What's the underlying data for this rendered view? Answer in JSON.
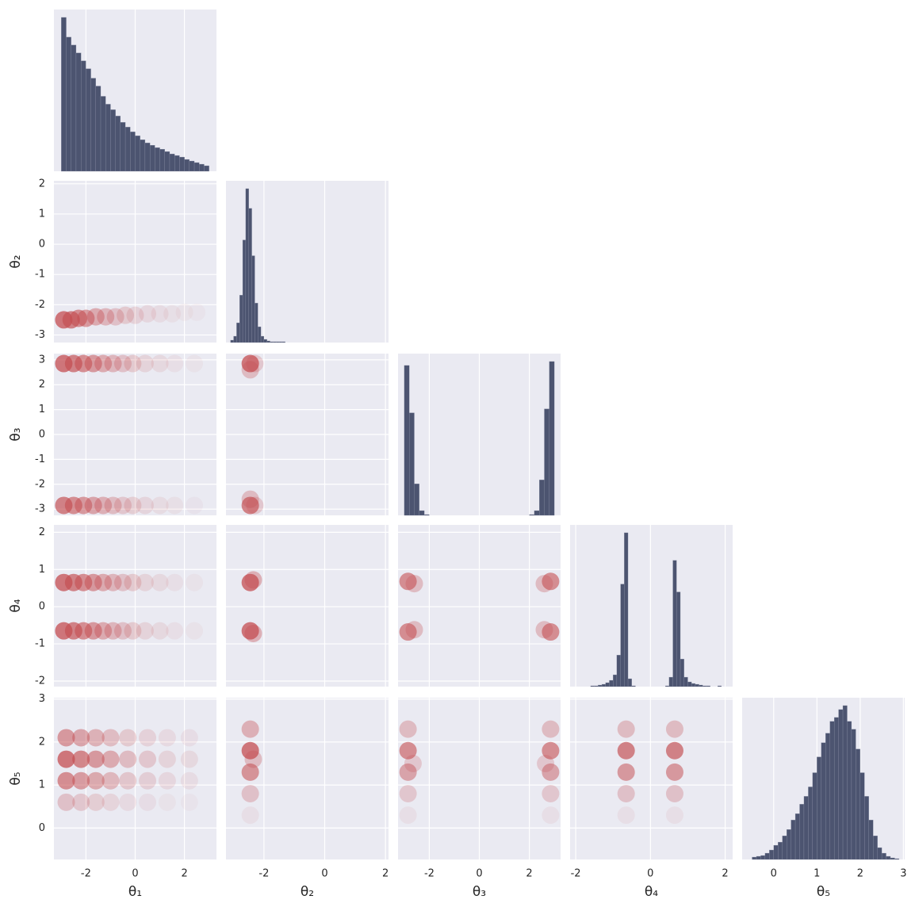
{
  "chart_data": {
    "type": "corner",
    "hist_color": "#4c5470",
    "hex_color": "#c44e52",
    "panel_color": "#eaeaf2",
    "grid": true,
    "variables": [
      {
        "label": "θ₁",
        "lim": [
          -3.3,
          3.3
        ],
        "xticks": [
          -2,
          0,
          2
        ],
        "bins": [
          -3.0,
          -2.8,
          -2.6,
          -2.4,
          -2.2,
          -2.0,
          -1.8,
          -1.6,
          -1.4,
          -1.2,
          -1.0,
          -0.8,
          -0.6,
          -0.4,
          -0.2,
          0.0,
          0.2,
          0.4,
          0.6,
          0.8,
          1.0,
          1.2,
          1.4,
          1.6,
          1.8,
          2.0,
          2.2,
          2.4,
          2.6,
          2.8,
          3.0
        ],
        "counts": [
          195,
          170,
          160,
          150,
          140,
          130,
          118,
          108,
          95,
          85,
          78,
          70,
          62,
          56,
          50,
          45,
          40,
          36,
          33,
          30,
          28,
          25,
          22,
          20,
          18,
          15,
          13,
          11,
          9,
          7
        ],
        "hist_ylim": [
          0,
          205
        ]
      },
      {
        "label": "θ₂",
        "lim": [
          -3.25,
          2.1
        ],
        "xticks": [
          -2,
          0,
          2
        ],
        "yticks": [
          -3,
          -2,
          -1,
          0,
          1,
          2
        ],
        "bins": [
          -3.1,
          -3.0,
          -2.9,
          -2.8,
          -2.7,
          -2.6,
          -2.5,
          -2.4,
          -2.3,
          -2.2,
          -2.1,
          -2.0,
          -1.9,
          -1.8,
          -1.7,
          -1.6,
          -1.5,
          -1.4,
          -1.3
        ],
        "counts": [
          3,
          8,
          25,
          60,
          130,
          195,
          170,
          110,
          50,
          20,
          8,
          4,
          2,
          1,
          1,
          1,
          1,
          1
        ],
        "hist_ylim": [
          0,
          205
        ]
      },
      {
        "label": "θ₃",
        "lim": [
          -3.25,
          3.25
        ],
        "xticks": [
          -2,
          0,
          2
        ],
        "yticks": [
          -3,
          -2,
          -1,
          0,
          1,
          2,
          3
        ],
        "bins": [
          -3.0,
          -2.8,
          -2.6,
          -2.4,
          -2.2,
          -2.0,
          -1.8,
          -1.6,
          -1.4,
          -1.2,
          -1.0,
          -0.8,
          -0.6,
          -0.4,
          -0.2,
          0.0,
          0.2,
          0.4,
          0.6,
          0.8,
          1.0,
          1.2,
          1.4,
          1.6,
          1.8,
          2.0,
          2.2,
          2.4,
          2.6,
          2.8,
          3.0
        ],
        "counts": [
          190,
          130,
          40,
          6,
          1,
          0,
          0,
          0,
          0,
          0,
          0,
          0,
          0,
          0,
          0,
          0,
          0,
          0,
          0,
          0,
          0,
          0,
          0,
          0,
          0,
          1,
          6,
          45,
          135,
          195
        ],
        "hist_ylim": [
          0,
          205
        ]
      },
      {
        "label": "θ₄",
        "lim": [
          -2.15,
          2.2
        ],
        "xticks": [
          -2,
          0,
          2
        ],
        "yticks": [
          -2,
          -1,
          0,
          1,
          2
        ],
        "bins": [
          -2.0,
          -1.9,
          -1.8,
          -1.7,
          -1.6,
          -1.5,
          -1.4,
          -1.3,
          -1.2,
          -1.1,
          -1.0,
          -0.9,
          -0.8,
          -0.7,
          -0.6,
          -0.5,
          -0.4,
          -0.3,
          -0.2,
          -0.1,
          0.0,
          0.1,
          0.2,
          0.3,
          0.4,
          0.5,
          0.6,
          0.7,
          0.8,
          0.9,
          1.0,
          1.1,
          1.2,
          1.3,
          1.4,
          1.5,
          1.6,
          1.7,
          1.8,
          1.9,
          2.0
        ],
        "counts": [
          0,
          0,
          0,
          0,
          1,
          1,
          2,
          3,
          5,
          8,
          15,
          40,
          130,
          195,
          10,
          1,
          0,
          0,
          0,
          0,
          0,
          0,
          0,
          0,
          1,
          12,
          160,
          120,
          35,
          12,
          6,
          4,
          3,
          2,
          1,
          1,
          0,
          0,
          1,
          0
        ],
        "hist_ylim": [
          0,
          205
        ]
      },
      {
        "label": "θ₅",
        "lim": [
          -0.73,
          3.03
        ],
        "xticks": [
          0,
          1,
          2,
          3
        ],
        "yticks": [
          0,
          1,
          2,
          3
        ],
        "bins": [
          -0.5,
          -0.4,
          -0.3,
          -0.2,
          -0.1,
          0.0,
          0.1,
          0.2,
          0.3,
          0.4,
          0.5,
          0.6,
          0.7,
          0.8,
          0.9,
          1.0,
          1.1,
          1.2,
          1.3,
          1.4,
          1.5,
          1.6,
          1.7,
          1.8,
          1.9,
          2.0,
          2.1,
          2.2,
          2.3,
          2.4,
          2.5,
          2.6,
          2.7,
          2.8,
          2.9
        ],
        "counts": [
          3,
          4,
          5,
          8,
          12,
          18,
          22,
          30,
          38,
          50,
          58,
          70,
          80,
          92,
          110,
          130,
          148,
          160,
          175,
          180,
          190,
          195,
          175,
          165,
          140,
          110,
          80,
          50,
          30,
          15,
          8,
          4,
          2,
          1
        ],
        "hist_ylim": [
          0,
          205
        ]
      }
    ],
    "pairs": [
      {
        "row": 1,
        "col": 0,
        "cells": [
          [
            -2.9,
            -2.5,
            1
          ],
          [
            -2.6,
            -2.5,
            0.9
          ],
          [
            -2.3,
            -2.45,
            0.8
          ],
          [
            -2.0,
            -2.45,
            0.7
          ],
          [
            -1.6,
            -2.4,
            0.55
          ],
          [
            -1.2,
            -2.4,
            0.45
          ],
          [
            -0.8,
            -2.4,
            0.35
          ],
          [
            -0.4,
            -2.35,
            0.28
          ],
          [
            0,
            -2.35,
            0.22
          ],
          [
            0.5,
            -2.3,
            0.16
          ],
          [
            1,
            -2.3,
            0.12
          ],
          [
            1.5,
            -2.3,
            0.09
          ],
          [
            2,
            -2.25,
            0.07
          ],
          [
            2.5,
            -2.25,
            0.05
          ]
        ]
      },
      {
        "row": 2,
        "col": 0,
        "cells": [
          [
            -2.9,
            2.85,
            1
          ],
          [
            -2.5,
            2.85,
            0.9
          ],
          [
            -2.1,
            2.85,
            0.8
          ],
          [
            -1.7,
            2.85,
            0.7
          ],
          [
            -1.3,
            2.85,
            0.55
          ],
          [
            -0.9,
            2.85,
            0.45
          ],
          [
            -0.5,
            2.85,
            0.35
          ],
          [
            -0.1,
            2.85,
            0.28
          ],
          [
            0.4,
            2.85,
            0.2
          ],
          [
            1.0,
            2.85,
            0.15
          ],
          [
            1.6,
            2.85,
            0.1
          ],
          [
            2.4,
            2.85,
            0.07
          ],
          [
            -2.9,
            -2.85,
            0.9
          ],
          [
            -2.5,
            -2.85,
            0.8
          ],
          [
            -2.1,
            -2.85,
            0.7
          ],
          [
            -1.7,
            -2.85,
            0.6
          ],
          [
            -1.3,
            -2.85,
            0.5
          ],
          [
            -0.9,
            -2.85,
            0.4
          ],
          [
            -0.5,
            -2.85,
            0.3
          ],
          [
            -0.1,
            -2.85,
            0.25
          ],
          [
            0.4,
            -2.85,
            0.18
          ],
          [
            1.0,
            -2.85,
            0.13
          ],
          [
            1.6,
            -2.85,
            0.09
          ],
          [
            2.4,
            -2.85,
            0.06
          ]
        ]
      },
      {
        "row": 2,
        "col": 1,
        "cells": [
          [
            -2.45,
            2.85,
            1
          ],
          [
            -2.45,
            2.6,
            0.4
          ],
          [
            -2.45,
            -2.85,
            0.9
          ],
          [
            -2.45,
            -2.6,
            0.4
          ],
          [
            -2.3,
            2.85,
            0.3
          ],
          [
            -2.3,
            -2.85,
            0.3
          ]
        ]
      },
      {
        "row": 3,
        "col": 0,
        "cells": [
          [
            -2.9,
            0.65,
            1
          ],
          [
            -2.5,
            0.65,
            0.9
          ],
          [
            -2.1,
            0.65,
            0.8
          ],
          [
            -1.7,
            0.65,
            0.7
          ],
          [
            -1.3,
            0.65,
            0.55
          ],
          [
            -0.9,
            0.65,
            0.45
          ],
          [
            -0.5,
            0.65,
            0.35
          ],
          [
            -0.1,
            0.65,
            0.28
          ],
          [
            0.4,
            0.65,
            0.2
          ],
          [
            1.0,
            0.65,
            0.15
          ],
          [
            1.6,
            0.65,
            0.1
          ],
          [
            2.4,
            0.65,
            0.07
          ],
          [
            -2.9,
            -0.65,
            1
          ],
          [
            -2.5,
            -0.65,
            0.9
          ],
          [
            -2.1,
            -0.65,
            0.8
          ],
          [
            -1.7,
            -0.65,
            0.7
          ],
          [
            -1.3,
            -0.65,
            0.55
          ],
          [
            -0.9,
            -0.65,
            0.45
          ],
          [
            -0.5,
            -0.65,
            0.35
          ],
          [
            -0.1,
            -0.65,
            0.28
          ],
          [
            0.4,
            -0.65,
            0.2
          ],
          [
            1.0,
            -0.65,
            0.15
          ],
          [
            1.6,
            -0.65,
            0.1
          ],
          [
            2.4,
            -0.65,
            0.07
          ]
        ]
      },
      {
        "row": 3,
        "col": 1,
        "cells": [
          [
            -2.45,
            0.65,
            1
          ],
          [
            -2.35,
            0.72,
            0.5
          ],
          [
            -2.45,
            -0.65,
            1
          ],
          [
            -2.35,
            -0.72,
            0.5
          ]
        ]
      },
      {
        "row": 3,
        "col": 2,
        "cells": [
          [
            -2.85,
            0.68,
            0.8
          ],
          [
            -2.6,
            0.62,
            0.4
          ],
          [
            2.85,
            0.68,
            0.8
          ],
          [
            2.6,
            0.62,
            0.4
          ],
          [
            -2.85,
            -0.68,
            0.8
          ],
          [
            -2.6,
            -0.62,
            0.4
          ],
          [
            2.85,
            -0.68,
            0.8
          ],
          [
            2.6,
            -0.62,
            0.4
          ]
        ]
      },
      {
        "row": 4,
        "col": 0,
        "cells": [
          [
            -2.8,
            0.6,
            0.35
          ],
          [
            -2.8,
            1.1,
            0.8
          ],
          [
            -2.8,
            1.6,
            1
          ],
          [
            -2.8,
            2.1,
            0.7
          ],
          [
            -2.2,
            0.6,
            0.3
          ],
          [
            -2.2,
            1.1,
            0.68
          ],
          [
            -2.2,
            1.6,
            0.85
          ],
          [
            -2.2,
            2.1,
            0.6
          ],
          [
            -1.6,
            0.6,
            0.25
          ],
          [
            -1.6,
            1.1,
            0.56
          ],
          [
            -1.6,
            1.6,
            0.7
          ],
          [
            -1.6,
            2.1,
            0.49
          ],
          [
            -1.0,
            0.6,
            0.19
          ],
          [
            -1.0,
            1.1,
            0.44
          ],
          [
            -1.0,
            1.6,
            0.55
          ],
          [
            -1.0,
            2.1,
            0.39
          ],
          [
            -0.3,
            0.6,
            0.14
          ],
          [
            -0.3,
            1.1,
            0.32
          ],
          [
            -0.3,
            1.6,
            0.4
          ],
          [
            -0.3,
            2.1,
            0.28
          ],
          [
            0.5,
            0.6,
            0.11
          ],
          [
            0.5,
            1.1,
            0.24
          ],
          [
            0.5,
            1.6,
            0.3
          ],
          [
            0.5,
            2.1,
            0.21
          ],
          [
            1.3,
            0.6,
            0.07
          ],
          [
            1.3,
            1.1,
            0.16
          ],
          [
            1.3,
            1.6,
            0.2
          ],
          [
            1.3,
            2.1,
            0.14
          ],
          [
            2.2,
            0.6,
            0.05
          ],
          [
            2.2,
            1.1,
            0.12
          ],
          [
            2.2,
            1.6,
            0.15
          ],
          [
            2.2,
            2.1,
            0.11
          ]
        ]
      },
      {
        "row": 4,
        "col": 1,
        "cells": [
          [
            -2.45,
            0.3,
            0.1
          ],
          [
            -2.45,
            0.8,
            0.35
          ],
          [
            -2.45,
            1.3,
            0.75
          ],
          [
            -2.45,
            1.8,
            1
          ],
          [
            -2.45,
            2.3,
            0.5
          ],
          [
            -2.35,
            1.6,
            0.4
          ]
        ]
      },
      {
        "row": 4,
        "col": 2,
        "cells": [
          [
            -2.85,
            0.3,
            0.1
          ],
          [
            -2.85,
            0.8,
            0.3
          ],
          [
            -2.85,
            1.3,
            0.6
          ],
          [
            -2.85,
            1.8,
            0.8
          ],
          [
            -2.85,
            2.3,
            0.4
          ],
          [
            -2.65,
            1.5,
            0.3
          ],
          [
            2.85,
            0.3,
            0.1
          ],
          [
            2.85,
            0.8,
            0.3
          ],
          [
            2.85,
            1.3,
            0.6
          ],
          [
            2.85,
            1.8,
            0.8
          ],
          [
            2.85,
            2.3,
            0.4
          ],
          [
            2.65,
            1.5,
            0.3
          ]
        ]
      },
      {
        "row": 4,
        "col": 3,
        "cells": [
          [
            -0.65,
            0.3,
            0.1
          ],
          [
            -0.65,
            0.8,
            0.35
          ],
          [
            -0.65,
            1.3,
            0.7
          ],
          [
            -0.65,
            1.8,
            0.9
          ],
          [
            -0.65,
            2.3,
            0.4
          ],
          [
            0.65,
            0.3,
            0.1
          ],
          [
            0.65,
            0.8,
            0.35
          ],
          [
            0.65,
            1.3,
            0.7
          ],
          [
            0.65,
            1.8,
            0.9
          ],
          [
            0.65,
            2.3,
            0.4
          ]
        ]
      }
    ]
  }
}
